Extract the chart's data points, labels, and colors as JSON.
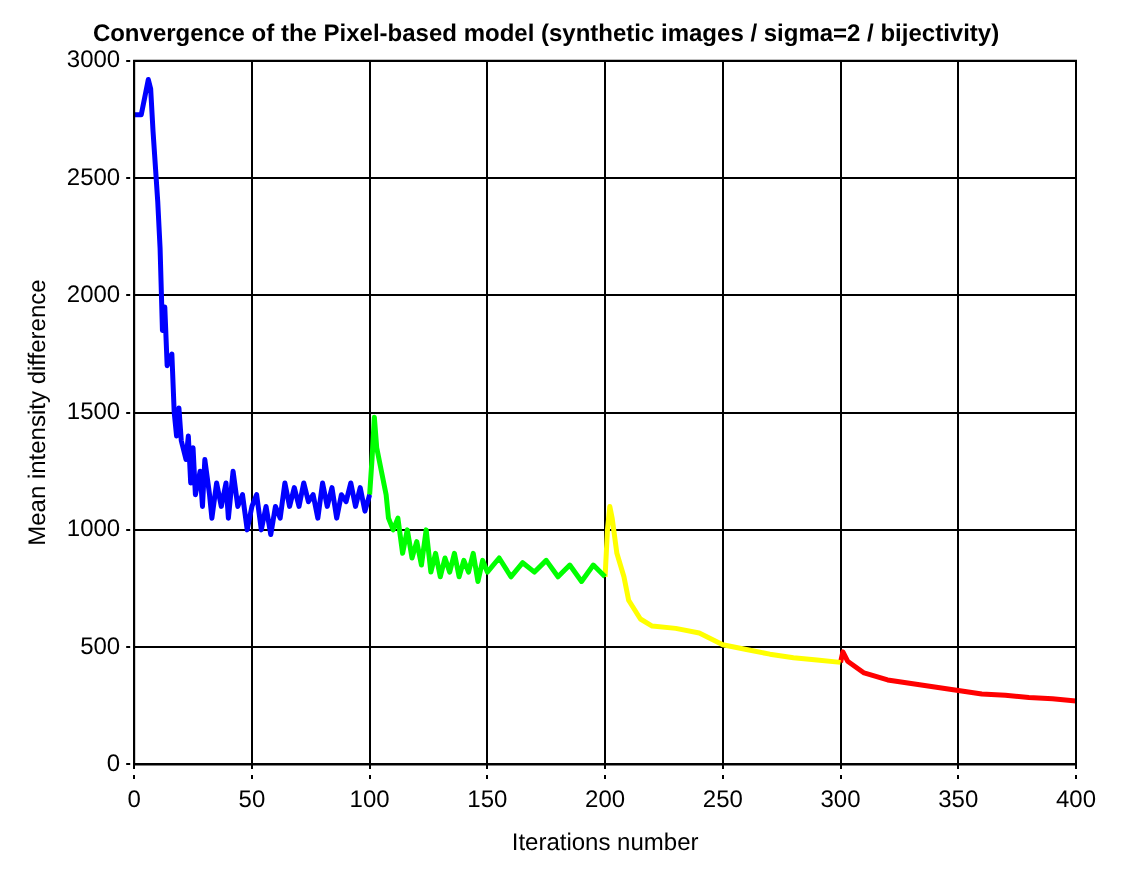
{
  "chart_data": {
    "type": "line",
    "title": "Convergence of the Pixel-based model (synthetic images / sigma=2 / bijectivity)",
    "xlabel": "Iterations number",
    "ylabel": "Mean intensity difference",
    "xlim": [
      0,
      400
    ],
    "xticks": [
      0,
      50,
      100,
      150,
      200,
      250,
      300,
      350,
      400
    ],
    "ylim": [
      0,
      3000
    ],
    "yticks": [
      0,
      500,
      1000,
      1500,
      2000,
      2500,
      3000
    ],
    "grid": true,
    "legend": false,
    "marker": "none",
    "line_style": "solid",
    "series": [
      {
        "color": "#0000ff",
        "x": [
          0,
          3,
          5,
          6,
          7,
          8,
          10,
          11,
          12,
          13,
          14,
          16,
          17,
          18,
          19,
          20,
          22,
          23,
          24,
          25,
          26,
          28,
          29,
          30,
          32,
          33,
          35,
          37,
          39,
          40,
          42,
          44,
          46,
          48,
          50,
          52,
          54,
          56,
          58,
          60,
          62,
          64,
          66,
          68,
          70,
          72,
          74,
          76,
          78,
          80,
          82,
          84,
          86,
          88,
          90,
          92,
          94,
          96,
          98,
          100
        ],
        "values": [
          2770,
          2770,
          2870,
          2920,
          2880,
          2700,
          2400,
          2200,
          1850,
          1950,
          1700,
          1750,
          1500,
          1400,
          1520,
          1380,
          1300,
          1400,
          1200,
          1350,
          1150,
          1250,
          1100,
          1300,
          1150,
          1050,
          1200,
          1100,
          1200,
          1050,
          1250,
          1100,
          1150,
          1000,
          1100,
          1150,
          1000,
          1100,
          980,
          1100,
          1050,
          1200,
          1100,
          1180,
          1100,
          1200,
          1120,
          1150,
          1050,
          1200,
          1100,
          1180,
          1050,
          1150,
          1120,
          1200,
          1100,
          1180,
          1080,
          1150
        ]
      },
      {
        "color": "#00ff00",
        "x": [
          100,
          101,
          102,
          103,
          105,
          107,
          108,
          110,
          112,
          114,
          116,
          118,
          120,
          122,
          124,
          126,
          128,
          130,
          132,
          134,
          136,
          138,
          140,
          142,
          144,
          146,
          148,
          150,
          155,
          160,
          165,
          170,
          175,
          180,
          185,
          190,
          195,
          200
        ],
        "values": [
          1150,
          1300,
          1480,
          1350,
          1250,
          1150,
          1050,
          1000,
          1050,
          900,
          1000,
          880,
          950,
          850,
          1000,
          820,
          900,
          800,
          880,
          820,
          900,
          800,
          870,
          820,
          900,
          780,
          870,
          820,
          880,
          800,
          860,
          820,
          870,
          800,
          850,
          780,
          850,
          800
        ]
      },
      {
        "color": "#ffff00",
        "x": [
          200,
          201,
          202,
          203,
          205,
          208,
          210,
          215,
          220,
          230,
          240,
          250,
          260,
          270,
          280,
          290,
          300
        ],
        "values": [
          800,
          1000,
          1100,
          1050,
          900,
          800,
          700,
          620,
          590,
          580,
          560,
          510,
          490,
          470,
          455,
          445,
          435
        ]
      },
      {
        "color": "#ff0000",
        "x": [
          300,
          301,
          303,
          310,
          320,
          330,
          340,
          350,
          360,
          370,
          380,
          390,
          400
        ],
        "values": [
          435,
          480,
          440,
          390,
          360,
          345,
          330,
          315,
          300,
          295,
          285,
          280,
          270
        ]
      }
    ]
  }
}
